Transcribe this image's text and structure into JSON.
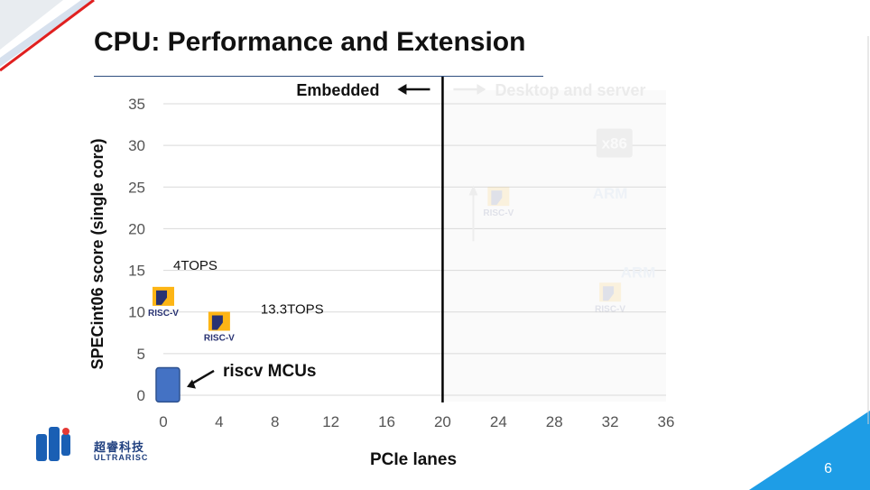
{
  "slide": {
    "title": "CPU: Performance and Extension",
    "page_number": "6",
    "logo": {
      "cn": "超睿科技",
      "en": "ULTRARISC"
    }
  },
  "chart_data": {
    "type": "scatter",
    "title": "",
    "xlabel": "PCIe lanes",
    "ylabel": "SPECint06 score (single core)",
    "xlim": [
      0,
      36
    ],
    "ylim": [
      0,
      35
    ],
    "x_ticks": [
      0,
      4,
      8,
      12,
      16,
      20,
      24,
      28,
      32,
      36
    ],
    "y_ticks": [
      0,
      5,
      10,
      15,
      20,
      25,
      30,
      35
    ],
    "grid": true,
    "divider_x": 20,
    "regions": {
      "left": "Embedded",
      "right": "Desktop and server"
    },
    "points": [
      {
        "name": "riscv-4tops",
        "label": "RISC-V",
        "annotation": "4TOPS",
        "x": 0,
        "y": 11.5,
        "faded": false
      },
      {
        "name": "riscv-13tops",
        "label": "RISC-V",
        "annotation": "13.3TOPS",
        "x": 4,
        "y": 8.5,
        "faded": false
      },
      {
        "name": "riscv-server-high",
        "label": "RISC-V",
        "x": 24,
        "y": 23.5,
        "faded": true
      },
      {
        "name": "riscv-server-low",
        "label": "RISC-V",
        "x": 32,
        "y": 12,
        "faded": true
      }
    ],
    "text_marks": [
      {
        "name": "x86",
        "label": "x86",
        "x": 32.3,
        "y": 30.5
      },
      {
        "name": "arm-high",
        "label": "ARM",
        "x": 32,
        "y": 24.5
      },
      {
        "name": "arm-low",
        "label": "ARM",
        "x": 34,
        "y": 15
      }
    ],
    "mcu_bar": {
      "label": "riscv MCUs",
      "x": 0,
      "y_min": -0.8,
      "y_max": 3.3
    }
  }
}
